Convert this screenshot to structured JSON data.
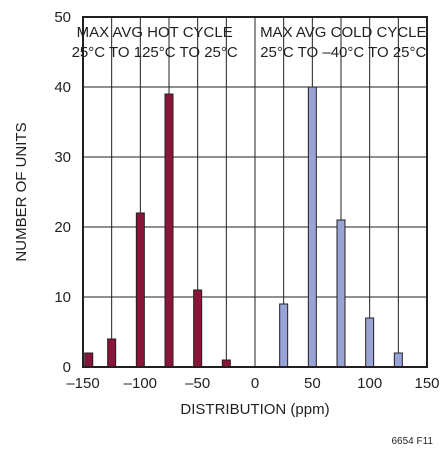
{
  "chart_data": {
    "type": "bar",
    "xlabel": "DISTRIBUTION (ppm)",
    "ylabel": "NUMBER OF UNITS",
    "xlim": [
      -150,
      150
    ],
    "ylim": [
      0,
      50
    ],
    "x_ticks": [
      {
        "value": -150,
        "label": "–150"
      },
      {
        "value": -100,
        "label": "–100"
      },
      {
        "value": -50,
        "label": "–50"
      },
      {
        "value": 0,
        "label": "0"
      },
      {
        "value": 50,
        "label": "50"
      },
      {
        "value": 100,
        "label": "100"
      },
      {
        "value": 150,
        "label": "150"
      }
    ],
    "y_ticks": [
      {
        "value": 0,
        "label": "0"
      },
      {
        "value": 10,
        "label": "10"
      },
      {
        "value": 20,
        "label": "20"
      },
      {
        "value": 30,
        "label": "30"
      },
      {
        "value": 40,
        "label": "40"
      },
      {
        "value": 50,
        "label": "50"
      }
    ],
    "grid": true,
    "series": [
      {
        "name": "",
        "color": "#8b1538",
        "annotation": [
          "MAX AVG HOT CYCLE",
          "25°C TO 125°C TO 25°C"
        ],
        "x": [
          -145,
          -125,
          -100,
          -75,
          -50,
          -25
        ],
        "values": [
          2,
          4,
          22,
          39,
          11,
          1
        ]
      },
      {
        "name": "",
        "color": "#98a3d6",
        "annotation": [
          "MAX AVG COLD CYCLE",
          "25°C TO –40°C TO 25°C"
        ],
        "x": [
          25,
          50,
          75,
          100,
          125
        ],
        "values": [
          9,
          40,
          21,
          7,
          2
        ]
      }
    ],
    "figure_id": "6654 F11"
  }
}
